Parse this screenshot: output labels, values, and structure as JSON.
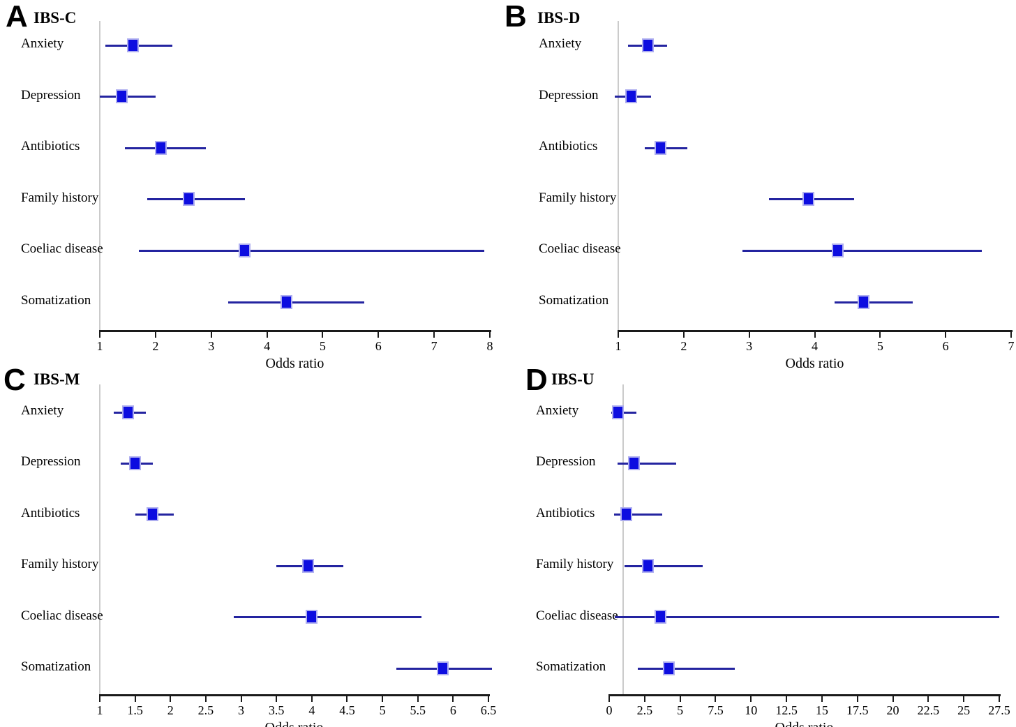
{
  "figure_name": "forest-plots-ibs-subtypes",
  "colors": {
    "marker": "#0d0de0",
    "marker_border": "#aeaef0",
    "ci_line": "#2424a0",
    "axis": "#1a1a1a",
    "reference_line": "#cbcbcb",
    "text": "#000000",
    "background": "#ffffff"
  },
  "chart_data": [
    {
      "type": "forest",
      "letter": "A",
      "title": "IBS-C",
      "xlabel": "Odds ratio",
      "xlim": [
        1,
        8
      ],
      "xticks": [
        "1",
        "2",
        "3",
        "4",
        "5",
        "6",
        "7",
        "8"
      ],
      "ref_line": 1,
      "grid": false,
      "rows": [
        {
          "label": "Anxiety",
          "or": 1.6,
          "ci_low": 1.1,
          "ci_high": 2.3
        },
        {
          "label": "Depression",
          "or": 1.4,
          "ci_low": 1.0,
          "ci_high": 2.0
        },
        {
          "label": "Antibiotics",
          "or": 2.1,
          "ci_low": 1.45,
          "ci_high": 2.9
        },
        {
          "label": "Family history",
          "or": 2.6,
          "ci_low": 1.85,
          "ci_high": 3.6
        },
        {
          "label": "Coeliac disease",
          "or": 3.6,
          "ci_low": 1.7,
          "ci_high": 7.9
        },
        {
          "label": "Somatization",
          "or": 4.35,
          "ci_low": 3.3,
          "ci_high": 5.75
        }
      ]
    },
    {
      "type": "forest",
      "letter": "B",
      "title": "IBS-D",
      "xlabel": "Odds ratio",
      "xlim": [
        1,
        7
      ],
      "xticks": [
        "1",
        "2",
        "3",
        "4",
        "5",
        "6",
        "7"
      ],
      "ref_line": 1,
      "grid": false,
      "rows": [
        {
          "label": "Anxiety",
          "or": 1.45,
          "ci_low": 1.15,
          "ci_high": 1.75
        },
        {
          "label": "Depression",
          "or": 1.2,
          "ci_low": 0.95,
          "ci_high": 1.5
        },
        {
          "label": "Antibiotics",
          "or": 1.65,
          "ci_low": 1.4,
          "ci_high": 2.05
        },
        {
          "label": "Family history",
          "or": 3.9,
          "ci_low": 3.3,
          "ci_high": 4.6
        },
        {
          "label": "Coeliac disease",
          "or": 4.35,
          "ci_low": 2.9,
          "ci_high": 6.55
        },
        {
          "label": "Somatization",
          "or": 4.75,
          "ci_low": 4.3,
          "ci_high": 5.5
        }
      ]
    },
    {
      "type": "forest",
      "letter": "C",
      "title": "IBS-M",
      "xlabel": "Odds ratio",
      "xlim": [
        1,
        6.5
      ],
      "xticks": [
        "1",
        "1.5",
        "2",
        "2.5",
        "3",
        "3.5",
        "4",
        "4.5",
        "5",
        "5.5",
        "6",
        "6.5"
      ],
      "ref_line": 1,
      "grid": false,
      "rows": [
        {
          "label": "Anxiety",
          "or": 1.4,
          "ci_low": 1.2,
          "ci_high": 1.65
        },
        {
          "label": "Depression",
          "or": 1.5,
          "ci_low": 1.3,
          "ci_high": 1.75
        },
        {
          "label": "Antibiotics",
          "or": 1.75,
          "ci_low": 1.5,
          "ci_high": 2.05
        },
        {
          "label": "Family history",
          "or": 3.95,
          "ci_low": 3.5,
          "ci_high": 4.45
        },
        {
          "label": "Coeliac disease",
          "or": 4.0,
          "ci_low": 2.9,
          "ci_high": 5.55
        },
        {
          "label": "Somatization",
          "or": 5.85,
          "ci_low": 5.2,
          "ci_high": 6.55
        }
      ]
    },
    {
      "type": "forest",
      "letter": "D",
      "title": "IBS-U",
      "xlabel": "Odds ratio",
      "xlim": [
        0,
        27.5
      ],
      "xticks": [
        "0",
        "2.5",
        "5",
        "7.5",
        "10",
        "12.5",
        "15",
        "17.5",
        "20",
        "22.5",
        "25",
        "27.5"
      ],
      "ref_line": 1,
      "grid": false,
      "rows": [
        {
          "label": "Anxiety",
          "or": 0.6,
          "ci_low": 0.15,
          "ci_high": 1.9
        },
        {
          "label": "Depression",
          "or": 1.75,
          "ci_low": 0.6,
          "ci_high": 4.7
        },
        {
          "label": "Antibiotics",
          "or": 1.2,
          "ci_low": 0.35,
          "ci_high": 3.75
        },
        {
          "label": "Family history",
          "or": 2.75,
          "ci_low": 1.1,
          "ci_high": 6.6
        },
        {
          "label": "Coeliac disease",
          "or": 3.6,
          "ci_low": 0.4,
          "ci_high": 27.5
        },
        {
          "label": "Somatization",
          "or": 4.2,
          "ci_low": 2.0,
          "ci_high": 8.85
        }
      ]
    }
  ]
}
